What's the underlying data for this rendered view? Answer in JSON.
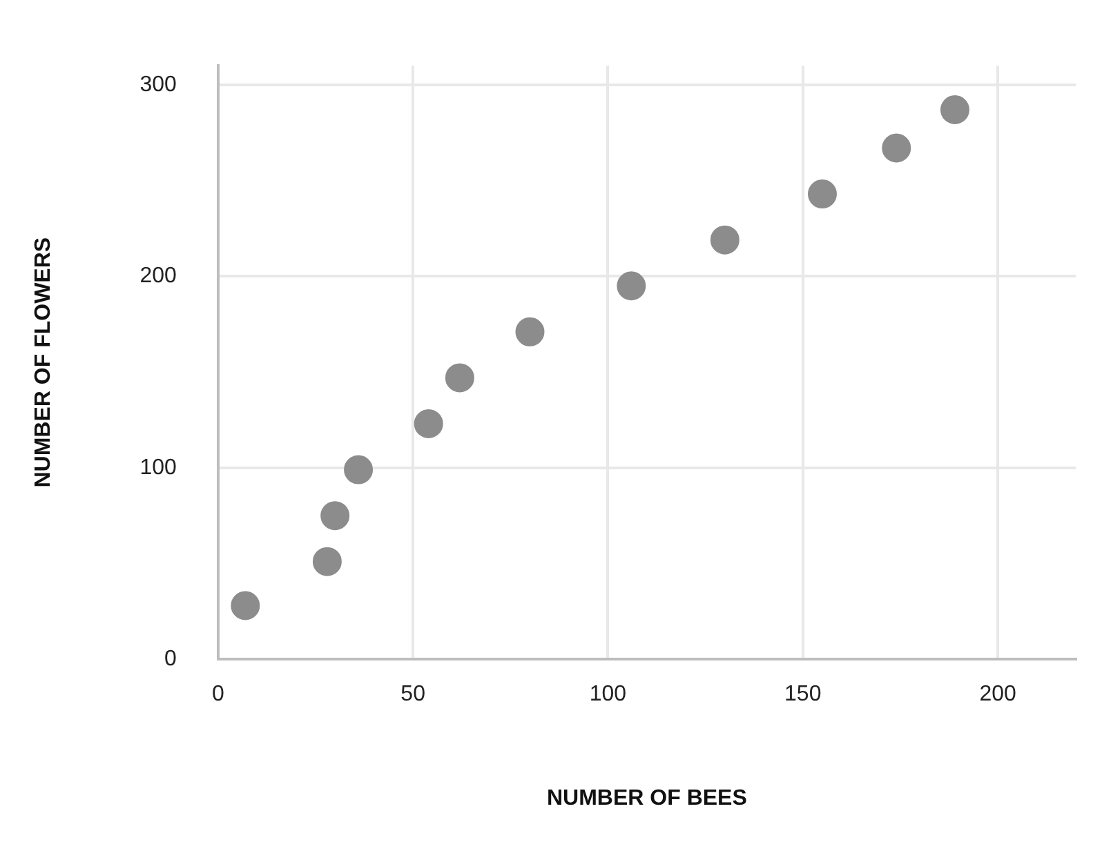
{
  "chart_data": {
    "type": "scatter",
    "xlabel": "NUMBER OF BEES",
    "ylabel": "NUMBER OF FLOWERS",
    "x": [
      7,
      28,
      30,
      36,
      54,
      62,
      80,
      106,
      130,
      155,
      174,
      189
    ],
    "values": [
      28,
      51,
      75,
      99,
      123,
      147,
      171,
      195,
      219,
      243,
      267,
      287
    ],
    "color": "#8c8c8c",
    "marker": "circle",
    "xlim": [
      0,
      220
    ],
    "xticks": [
      0,
      50,
      100,
      150,
      200
    ],
    "ylim": [
      0,
      310
    ],
    "yticks": [
      0,
      100,
      200,
      300
    ],
    "grid": true,
    "legend": false
  }
}
